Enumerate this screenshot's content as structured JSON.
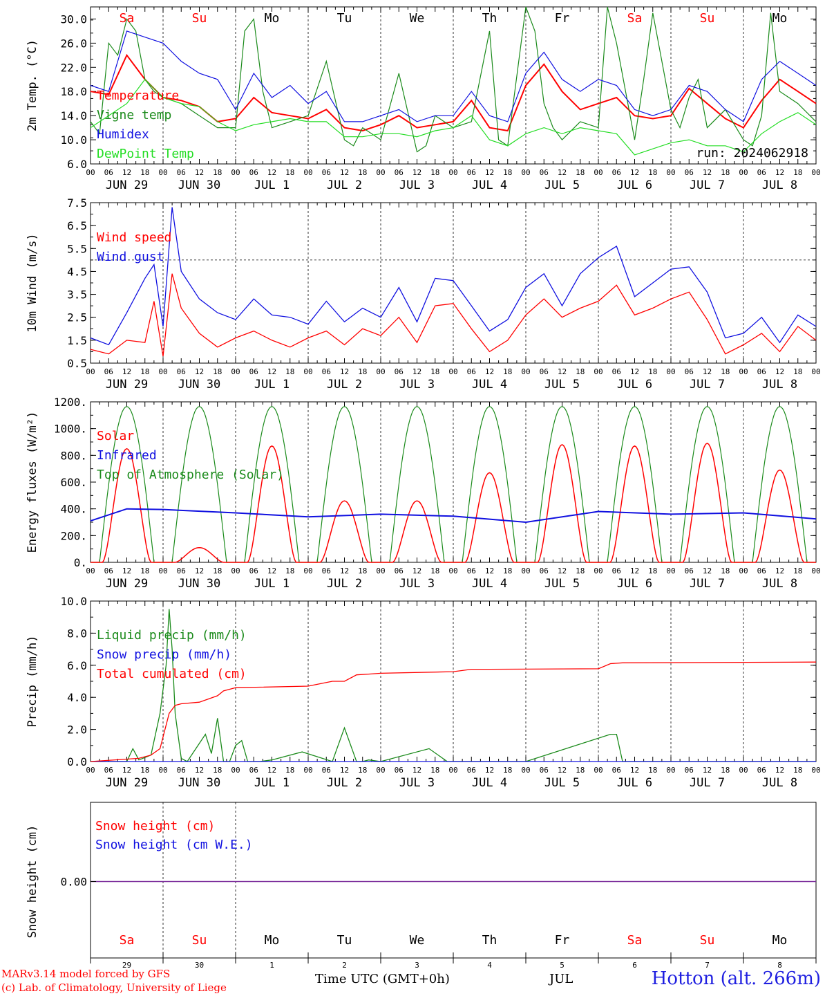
{
  "footer": {
    "credit_line1": "MARv3.14 model forced by GFS",
    "credit_line2": "(c) Lab. of Climatology, University of Liege",
    "time_label": "Time UTC (GMT+0h)",
    "month_label": "JUL",
    "station": "Hotton (alt. 266m)"
  },
  "run_label": "run: 2024062918",
  "colors": {
    "red": "#ff0000",
    "blue": "#1010e0",
    "green": "#1a8a1a",
    "lightgreen": "#22dd22",
    "weekend": "#ff0000",
    "weekday": "#000000"
  },
  "chart_data": [
    {
      "type": "line",
      "ylabel": "2m Temp. (°C)",
      "ylim": [
        6,
        32
      ],
      "yticks": [
        "30.0",
        "26.0",
        "22.0",
        "18.0",
        "14.0",
        "10.0",
        "6.0"
      ],
      "day_names": [
        "Sa",
        "Su",
        "Mo",
        "Tu",
        "We",
        "Th",
        "Fr",
        "Sa",
        "Su",
        "Mo"
      ],
      "x_hours_per_day": [
        "00",
        "06",
        "12",
        "18"
      ],
      "x_date_labels": [
        "JUN 29",
        "JUN 30",
        "JUL  1",
        "JUL  2",
        "JUL  3",
        "JUL  4",
        "JUL  5",
        "JUL  6",
        "JUL  7",
        "JUL  8"
      ],
      "series": [
        {
          "name": "Temperature",
          "color": "red",
          "x": [
            0,
            6,
            12,
            18,
            24,
            30,
            36,
            42,
            48,
            54,
            60,
            66,
            72,
            78,
            84,
            90,
            96,
            102,
            108,
            114,
            120,
            126,
            132,
            138,
            144,
            150,
            156,
            162,
            168,
            174,
            180,
            186,
            192,
            198,
            204,
            210,
            216,
            222,
            228,
            234,
            240
          ],
          "values": [
            18,
            17.5,
            24,
            20,
            17,
            16.5,
            15.5,
            13,
            13.5,
            17,
            14.5,
            14,
            13.5,
            15,
            12,
            11.5,
            12.5,
            14,
            12,
            12.5,
            13,
            16.5,
            12,
            11.5,
            19,
            22.5,
            18,
            15,
            16,
            17,
            14,
            13.5,
            14,
            18.5,
            16,
            13.5,
            12,
            16.5,
            20,
            18,
            16
          ]
        },
        {
          "name": "Vigne temp",
          "color": "green",
          "x": [
            0,
            3,
            6,
            9,
            12,
            15,
            18,
            21,
            24,
            30,
            36,
            42,
            48,
            51,
            54,
            57,
            60,
            66,
            72,
            78,
            84,
            87,
            90,
            96,
            102,
            108,
            111,
            114,
            120,
            126,
            132,
            135,
            138,
            144,
            147,
            150,
            153,
            156,
            162,
            168,
            171,
            174,
            180,
            183,
            186,
            192,
            195,
            198,
            201,
            204,
            210,
            216,
            219,
            222,
            225,
            228,
            234,
            240
          ],
          "values": [
            13,
            11,
            26,
            24,
            30,
            28,
            20,
            18,
            17,
            16,
            14,
            12,
            12,
            28,
            30,
            18,
            12,
            13,
            14,
            23,
            10,
            9,
            12,
            10,
            21,
            8,
            9,
            14,
            12,
            13,
            28,
            10,
            9,
            32,
            28,
            16,
            12,
            10,
            13,
            12,
            32,
            26,
            10,
            20,
            31,
            15,
            12,
            17,
            20,
            12,
            15,
            10,
            9,
            14,
            31,
            18,
            16,
            13
          ]
        },
        {
          "name": "Humidex",
          "color": "blue",
          "x": [
            0,
            6,
            12,
            18,
            24,
            30,
            36,
            42,
            48,
            54,
            60,
            66,
            72,
            78,
            84,
            90,
            96,
            102,
            108,
            114,
            120,
            126,
            132,
            138,
            144,
            150,
            156,
            162,
            168,
            174,
            180,
            186,
            192,
            198,
            204,
            210,
            216,
            222,
            228,
            234,
            240
          ],
          "values": [
            19,
            18,
            28,
            27,
            26,
            23,
            21,
            20,
            15,
            21,
            17,
            19,
            16,
            18,
            13,
            13,
            14,
            15,
            13,
            14,
            14,
            18,
            14,
            13,
            21,
            24.5,
            20,
            18,
            20,
            19,
            15,
            14,
            15,
            19,
            18,
            15,
            13,
            20,
            23,
            21,
            19
          ]
        },
        {
          "name": "DewPoint Temp",
          "color": "lightgreen",
          "x": [
            0,
            6,
            12,
            18,
            24,
            30,
            36,
            42,
            48,
            54,
            60,
            66,
            72,
            78,
            84,
            90,
            96,
            102,
            108,
            114,
            120,
            126,
            132,
            138,
            144,
            150,
            156,
            162,
            168,
            174,
            180,
            186,
            192,
            198,
            204,
            210,
            216,
            222,
            228,
            234,
            240
          ],
          "values": [
            12,
            14,
            16,
            20,
            17,
            16,
            15.5,
            13,
            11.5,
            12.5,
            13,
            13.5,
            13,
            13,
            10.5,
            10.5,
            11,
            11,
            10.5,
            11.5,
            12,
            14,
            10,
            9,
            11,
            12,
            11,
            12,
            11.5,
            11,
            7.5,
            8.5,
            9.5,
            10,
            9,
            9,
            8,
            11,
            13,
            14.5,
            12.5
          ]
        }
      ]
    },
    {
      "type": "line",
      "ylabel": "10m Wind (m/s)",
      "ylim": [
        0.5,
        7.5
      ],
      "yticks": [
        "7.5",
        "6.5",
        "5.5",
        "4.5",
        "3.5",
        "2.5",
        "1.5",
        "0.5"
      ],
      "reference_line": 5.0,
      "x_hours_per_day": [
        "00",
        "06",
        "12",
        "18"
      ],
      "x_date_labels": [
        "JUN 29",
        "JUN 30",
        "JUL  1",
        "JUL  2",
        "JUL  3",
        "JUL  4",
        "JUL  5",
        "JUL  6",
        "JUL  7",
        "JUL  8"
      ],
      "series": [
        {
          "name": "Wind speed",
          "color": "red",
          "x": [
            0,
            6,
            12,
            18,
            21,
            24,
            27,
            30,
            36,
            42,
            48,
            54,
            60,
            66,
            72,
            78,
            84,
            90,
            96,
            102,
            108,
            114,
            120,
            126,
            132,
            138,
            144,
            150,
            156,
            162,
            168,
            174,
            180,
            186,
            192,
            198,
            204,
            210,
            216,
            222,
            228,
            234,
            240
          ],
          "values": [
            1.1,
            0.9,
            1.5,
            1.4,
            3.2,
            0.8,
            4.4,
            2.9,
            1.8,
            1.2,
            1.6,
            1.9,
            1.5,
            1.2,
            1.6,
            1.9,
            1.3,
            2.0,
            1.7,
            2.5,
            1.4,
            3.0,
            3.1,
            2.0,
            1.0,
            1.5,
            2.6,
            3.3,
            2.5,
            2.9,
            3.2,
            3.9,
            2.6,
            2.9,
            3.3,
            3.6,
            2.4,
            0.9,
            1.3,
            1.8,
            1.0,
            2.1,
            1.5
          ]
        },
        {
          "name": "Wind gust",
          "color": "blue",
          "x": [
            0,
            6,
            12,
            18,
            21,
            24,
            27,
            30,
            36,
            42,
            48,
            54,
            60,
            66,
            72,
            78,
            84,
            90,
            96,
            102,
            108,
            114,
            120,
            126,
            132,
            138,
            144,
            150,
            156,
            162,
            168,
            174,
            180,
            186,
            192,
            198,
            204,
            210,
            216,
            222,
            228,
            234,
            240
          ],
          "values": [
            1.6,
            1.3,
            2.7,
            4.2,
            4.8,
            2.1,
            7.3,
            4.5,
            3.3,
            2.7,
            2.4,
            3.3,
            2.6,
            2.5,
            2.2,
            3.2,
            2.3,
            2.9,
            2.5,
            3.8,
            2.3,
            4.2,
            4.1,
            3.0,
            1.9,
            2.4,
            3.8,
            4.4,
            3.0,
            4.4,
            5.1,
            5.6,
            3.4,
            4.0,
            4.6,
            4.7,
            3.6,
            1.6,
            1.8,
            2.5,
            1.4,
            2.6,
            2.1
          ]
        }
      ]
    },
    {
      "type": "line",
      "ylabel": "Energy fluxes (W/m²)",
      "ylim": [
        0,
        1200
      ],
      "yticks": [
        "1200.",
        "1000.",
        "800.",
        "600.",
        "400.",
        "200.",
        "0."
      ],
      "x_hours_per_day": [
        "00",
        "06",
        "12",
        "18"
      ],
      "x_date_labels": [
        "JUN 29",
        "JUN 30",
        "JUL  1",
        "JUL  2",
        "JUL  3",
        "JUL  4",
        "JUL  5",
        "JUL  6",
        "JUL  7",
        "JUL  8"
      ],
      "toa_peak": 1165,
      "solar_daily_peak": [
        850,
        110,
        870,
        460,
        460,
        670,
        880,
        870,
        890,
        690
      ],
      "series": [
        {
          "name": "Solar",
          "color": "red"
        },
        {
          "name": "Infrared",
          "color": "blue",
          "x": [
            0,
            12,
            24,
            48,
            72,
            96,
            120,
            144,
            168,
            192,
            216,
            240
          ],
          "values": [
            310,
            400,
            395,
            370,
            340,
            360,
            345,
            300,
            380,
            360,
            370,
            325
          ]
        },
        {
          "name": "Top of Atmosphere (Solar)",
          "color": "green"
        }
      ]
    },
    {
      "type": "line",
      "ylabel": "Precip (mm/h)",
      "ylim": [
        0,
        10
      ],
      "yticks": [
        "10.0",
        "8.0",
        "6.0",
        "4.0",
        "2.0",
        "0.0"
      ],
      "x_hours_per_day": [
        "00",
        "06",
        "12",
        "18"
      ],
      "x_date_labels": [
        "JUN 29",
        "JUN 30",
        "JUL  1",
        "JUL  2",
        "JUL  3",
        "JUL  4",
        "JUL  5",
        "JUL  6",
        "JUL  7",
        "JUL  8"
      ],
      "series": [
        {
          "name": "Liquid precip (mm/h)",
          "color": "green",
          "x": [
            0,
            12,
            14,
            16,
            20,
            23,
            25,
            26,
            27,
            28,
            30,
            32,
            38,
            40,
            42,
            44,
            46,
            48,
            50,
            52,
            56,
            60,
            70,
            80,
            84,
            88,
            90,
            92,
            96,
            112,
            118,
            120,
            144,
            172,
            174,
            176,
            180,
            240
          ],
          "values": [
            0,
            0,
            0.8,
            0.1,
            0.4,
            3.0,
            6.0,
            9.5,
            7.0,
            3.0,
            0.2,
            0,
            1.7,
            0.5,
            2.7,
            0,
            0,
            1.0,
            1.3,
            0,
            0,
            0.1,
            0.6,
            0,
            2.1,
            0,
            0,
            0.1,
            0,
            0.8,
            0,
            0,
            0,
            1.7,
            1.7,
            0,
            0,
            0
          ]
        },
        {
          "name": "Snow precip (mm/h)",
          "color": "blue",
          "x": [
            0,
            240
          ],
          "values": [
            0,
            0
          ]
        },
        {
          "name": "Total cumulated (cm)",
          "color": "red",
          "x": [
            0,
            16,
            20,
            23,
            26,
            28,
            30,
            36,
            42,
            44,
            48,
            72,
            80,
            84,
            88,
            92,
            96,
            120,
            126,
            132,
            168,
            172,
            176,
            240
          ],
          "values": [
            0,
            0.2,
            0.4,
            0.8,
            3.0,
            3.5,
            3.6,
            3.7,
            4.1,
            4.4,
            4.6,
            4.7,
            5.0,
            5.0,
            5.4,
            5.45,
            5.5,
            5.6,
            5.75,
            5.75,
            5.78,
            6.1,
            6.15,
            6.2
          ]
        }
      ]
    },
    {
      "type": "line",
      "ylabel": "Snow height (cm)",
      "yticks": [
        "0.00"
      ],
      "day_names": [
        "Sa",
        "Su",
        "Mo",
        "Tu",
        "We",
        "Th",
        "Fr",
        "Sa",
        "Su",
        "Mo"
      ],
      "day_numbers": [
        "29",
        "30",
        "1",
        "2",
        "3",
        "4",
        "5",
        "6",
        "7",
        "8"
      ],
      "series": [
        {
          "name": "Snow height (cm)",
          "color": "red",
          "x": [
            0,
            240
          ],
          "values": [
            0,
            0
          ]
        },
        {
          "name": "Snow height (cm W.E.)",
          "color": "blue",
          "x": [
            0,
            240
          ],
          "values": [
            0,
            0
          ]
        }
      ]
    }
  ]
}
